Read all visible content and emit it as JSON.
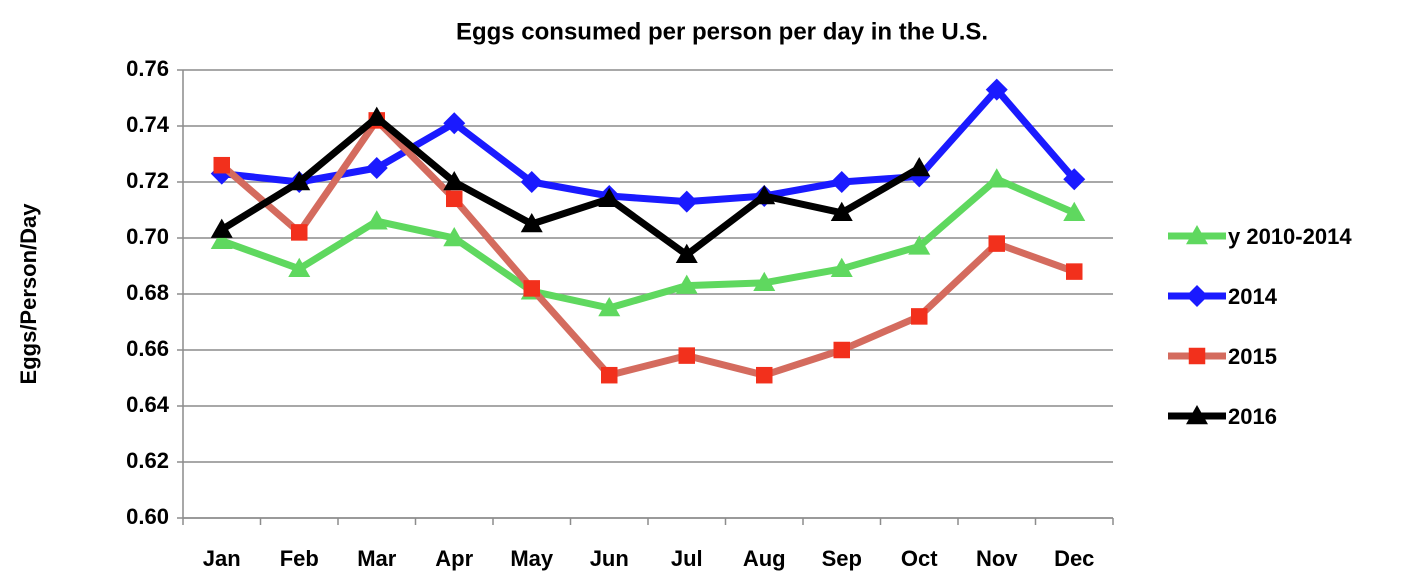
{
  "chart_data": {
    "type": "line",
    "title": "Eggs consumed per person per day in the U.S.",
    "y_label": "Eggs/Person/Day",
    "categories": [
      "Jan",
      "Feb",
      "Mar",
      "Apr",
      "May",
      "Jun",
      "Jul",
      "Aug",
      "Sep",
      "Oct",
      "Nov",
      "Dec"
    ],
    "series": [
      {
        "name": "y 2010-2014",
        "color": "#5fd85f",
        "marker_color": "#5fd85f",
        "marker": "triangle",
        "values": [
          0.699,
          0.689,
          0.706,
          0.7,
          0.681,
          0.675,
          0.683,
          0.684,
          0.689,
          0.697,
          0.721,
          0.709
        ]
      },
      {
        "name": "2014",
        "color": "#1a1aff",
        "marker_color": "#1a1aff",
        "marker": "diamond",
        "values": [
          0.723,
          0.72,
          0.725,
          0.741,
          0.72,
          0.715,
          0.713,
          0.715,
          0.72,
          0.722,
          0.753,
          0.721
        ]
      },
      {
        "name": "2015",
        "color": "#d46b5e",
        "marker_color": "#f2301c",
        "marker": "square",
        "values": [
          0.726,
          0.702,
          0.742,
          0.714,
          0.682,
          0.651,
          0.658,
          0.651,
          0.66,
          0.672,
          0.698,
          0.688
        ]
      },
      {
        "name": "2016",
        "color": "#000000",
        "marker_color": "#000000",
        "marker": "triangle",
        "values": [
          0.703,
          0.72,
          0.743,
          0.72,
          0.705,
          0.714,
          0.694,
          0.715,
          0.709,
          0.725,
          null,
          null
        ]
      }
    ],
    "ylim": [
      0.6,
      0.76
    ],
    "yticks": [
      {
        "value": 0.6,
        "label": "0.60"
      },
      0.62,
      0.64,
      0.66,
      0.68,
      {
        "value": 0.7,
        "label": "0.70"
      },
      0.72,
      0.74,
      0.76
    ],
    "grid": true,
    "legend": "right"
  }
}
